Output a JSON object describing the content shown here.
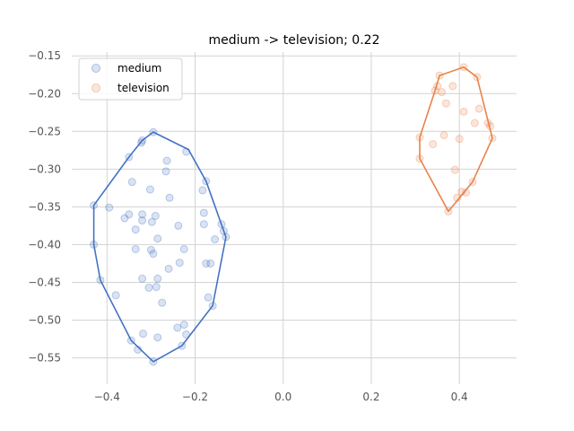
{
  "chart_data": {
    "type": "scatter",
    "title": "medium -> television; 0.22",
    "xlabel": "",
    "ylabel": "",
    "xlim": [
      -0.48,
      0.53
    ],
    "ylim": [
      -0.585,
      -0.145
    ],
    "xticks": [
      -0.4,
      -0.2,
      0.0,
      0.2,
      0.4
    ],
    "xtick_labels": [
      "−0.4",
      "−0.2",
      "0.0",
      "0.2",
      "0.4"
    ],
    "yticks": [
      -0.55,
      -0.5,
      -0.45,
      -0.4,
      -0.35,
      -0.3,
      -0.25,
      -0.2,
      -0.15
    ],
    "ytick_labels": [
      "−0.55",
      "−0.50",
      "−0.45",
      "−0.40",
      "−0.35",
      "−0.30",
      "−0.25",
      "−0.20",
      "−0.15"
    ],
    "grid": true,
    "legend_position": "top-left",
    "series": [
      {
        "name": "medium",
        "color": "#4472c4",
        "points": [
          [
            -0.295,
            -0.251
          ],
          [
            -0.32,
            -0.262
          ],
          [
            -0.322,
            -0.265
          ],
          [
            -0.35,
            -0.284
          ],
          [
            -0.22,
            -0.277
          ],
          [
            -0.264,
            -0.289
          ],
          [
            -0.266,
            -0.303
          ],
          [
            -0.343,
            -0.317
          ],
          [
            -0.175,
            -0.316
          ],
          [
            -0.183,
            -0.328
          ],
          [
            -0.302,
            -0.327
          ],
          [
            -0.258,
            -0.338
          ],
          [
            -0.43,
            -0.348
          ],
          [
            -0.395,
            -0.351
          ],
          [
            -0.35,
            -0.36
          ],
          [
            -0.36,
            -0.365
          ],
          [
            -0.32,
            -0.36
          ],
          [
            -0.29,
            -0.362
          ],
          [
            -0.32,
            -0.368
          ],
          [
            -0.298,
            -0.37
          ],
          [
            -0.18,
            -0.358
          ],
          [
            -0.14,
            -0.373
          ],
          [
            -0.18,
            -0.373
          ],
          [
            -0.238,
            -0.375
          ],
          [
            -0.135,
            -0.382
          ],
          [
            -0.13,
            -0.39
          ],
          [
            -0.335,
            -0.38
          ],
          [
            -0.285,
            -0.392
          ],
          [
            -0.155,
            -0.393
          ],
          [
            -0.43,
            -0.4
          ],
          [
            -0.335,
            -0.406
          ],
          [
            -0.3,
            -0.407
          ],
          [
            -0.225,
            -0.406
          ],
          [
            -0.295,
            -0.412
          ],
          [
            -0.235,
            -0.424
          ],
          [
            -0.175,
            -0.425
          ],
          [
            -0.165,
            -0.425
          ],
          [
            -0.26,
            -0.432
          ],
          [
            -0.415,
            -0.447
          ],
          [
            -0.32,
            -0.445
          ],
          [
            -0.285,
            -0.445
          ],
          [
            -0.305,
            -0.457
          ],
          [
            -0.288,
            -0.456
          ],
          [
            -0.38,
            -0.467
          ],
          [
            -0.17,
            -0.47
          ],
          [
            -0.275,
            -0.477
          ],
          [
            -0.16,
            -0.481
          ],
          [
            -0.225,
            -0.506
          ],
          [
            -0.24,
            -0.51
          ],
          [
            -0.22,
            -0.519
          ],
          [
            -0.318,
            -0.518
          ],
          [
            -0.285,
            -0.523
          ],
          [
            -0.345,
            -0.527
          ],
          [
            -0.23,
            -0.534
          ],
          [
            -0.33,
            -0.539
          ],
          [
            -0.295,
            -0.555
          ]
        ],
        "hull": [
          [
            -0.295,
            -0.251
          ],
          [
            -0.215,
            -0.274
          ],
          [
            -0.175,
            -0.316
          ],
          [
            -0.13,
            -0.39
          ],
          [
            -0.16,
            -0.481
          ],
          [
            -0.23,
            -0.534
          ],
          [
            -0.295,
            -0.555
          ],
          [
            -0.345,
            -0.527
          ],
          [
            -0.415,
            -0.447
          ],
          [
            -0.43,
            -0.4
          ],
          [
            -0.43,
            -0.348
          ],
          [
            -0.35,
            -0.284
          ],
          [
            -0.32,
            -0.262
          ]
        ]
      },
      {
        "name": "television",
        "color": "#e8834a",
        "points": [
          [
            0.41,
            -0.165
          ],
          [
            0.355,
            -0.176
          ],
          [
            0.44,
            -0.178
          ],
          [
            0.35,
            -0.19
          ],
          [
            0.385,
            -0.19
          ],
          [
            0.345,
            -0.196
          ],
          [
            0.36,
            -0.198
          ],
          [
            0.37,
            -0.213
          ],
          [
            0.445,
            -0.22
          ],
          [
            0.41,
            -0.224
          ],
          [
            0.435,
            -0.239
          ],
          [
            0.465,
            -0.239
          ],
          [
            0.47,
            -0.243
          ],
          [
            0.365,
            -0.255
          ],
          [
            0.31,
            -0.258
          ],
          [
            0.4,
            -0.26
          ],
          [
            0.475,
            -0.259
          ],
          [
            0.34,
            -0.267
          ],
          [
            0.31,
            -0.286
          ],
          [
            0.39,
            -0.301
          ],
          [
            0.43,
            -0.317
          ],
          [
            0.405,
            -0.33
          ],
          [
            0.415,
            -0.331
          ],
          [
            0.395,
            -0.338
          ],
          [
            0.375,
            -0.356
          ]
        ],
        "hull": [
          [
            0.41,
            -0.165
          ],
          [
            0.44,
            -0.178
          ],
          [
            0.475,
            -0.259
          ],
          [
            0.43,
            -0.317
          ],
          [
            0.375,
            -0.356
          ],
          [
            0.31,
            -0.286
          ],
          [
            0.31,
            -0.258
          ],
          [
            0.345,
            -0.196
          ],
          [
            0.355,
            -0.176
          ]
        ]
      }
    ]
  }
}
